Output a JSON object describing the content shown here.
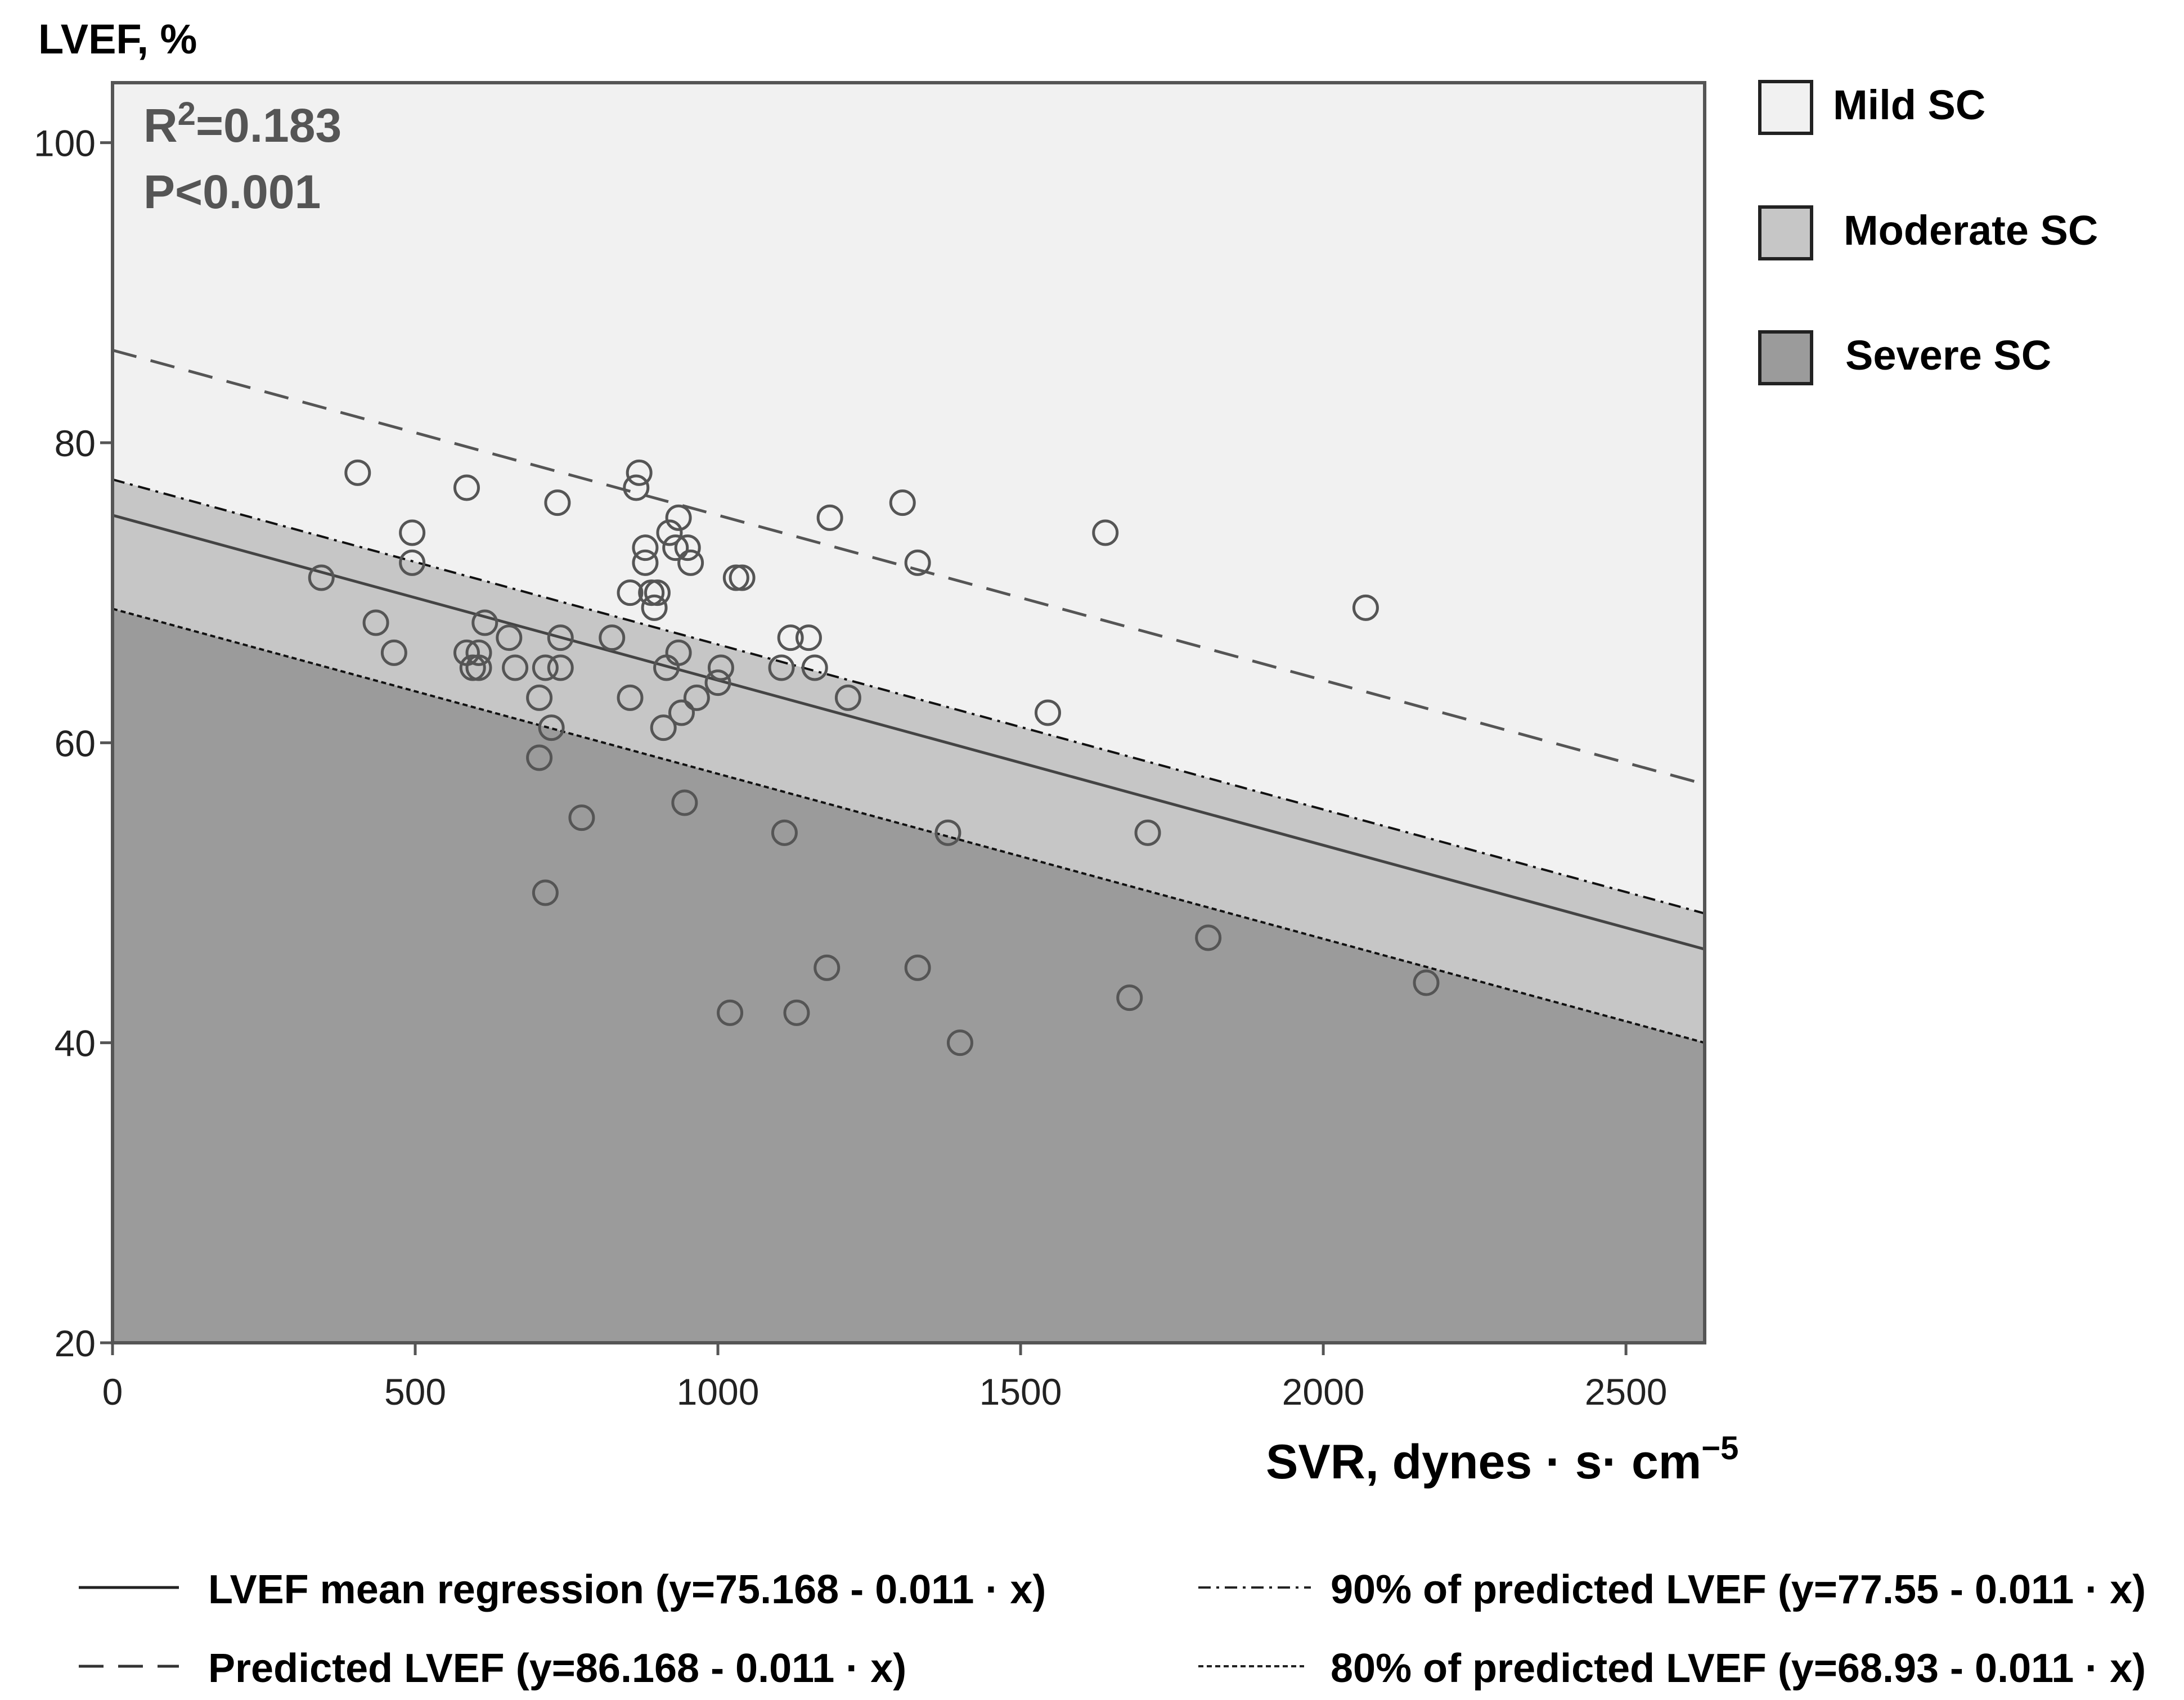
{
  "chart_data": {
    "type": "scatter",
    "y_axis_title": "LVEF, %",
    "x_axis_title": "SVR, dynes · s· cm",
    "x_axis_title_sup": "−5",
    "xlim": [
      0,
      2630
    ],
    "ylim": [
      20,
      104
    ],
    "x_ticks": [
      0,
      500,
      1000,
      1500,
      2000,
      2500
    ],
    "y_ticks": [
      20,
      40,
      60,
      80,
      100
    ],
    "stats": {
      "r2_prefix": "R",
      "r2_sup": "2",
      "r2_value": "=0.183",
      "p_value": "P<0.001"
    },
    "bands": [
      {
        "name": "Mild SC",
        "color": "#f1f1f1"
      },
      {
        "name": "Moderate SC",
        "color": "#c6c6c6"
      },
      {
        "name": "Severe SC",
        "color": "#9b9b9b"
      }
    ],
    "lines": [
      {
        "key": "mean",
        "label": "LVEF mean regression (y=75.168 - 0.011 · x)",
        "intercept": 75.168,
        "slope": -0.011,
        "style": "solid"
      },
      {
        "key": "predicted",
        "label": "Predicted LVEF (y=86.168 - 0.011 · x)",
        "intercept": 86.168,
        "slope": -0.011,
        "style": "dashed"
      },
      {
        "key": "p90",
        "label": "90% of predicted LVEF (y=77.55 - 0.011 · x)",
        "intercept": 77.55,
        "slope": -0.011,
        "style": "dashdot"
      },
      {
        "key": "p80",
        "label": "80% of predicted LVEF (y=68.93 - 0.011 · x)",
        "intercept": 68.93,
        "slope": -0.011,
        "style": "dotted"
      }
    ],
    "points": [
      [
        405,
        78
      ],
      [
        345,
        71
      ],
      [
        435,
        68
      ],
      [
        465,
        66
      ],
      [
        495,
        74
      ],
      [
        495,
        72
      ],
      [
        585,
        77
      ],
      [
        585,
        66
      ],
      [
        595,
        65
      ],
      [
        605,
        66
      ],
      [
        605,
        65
      ],
      [
        615,
        68
      ],
      [
        655,
        67
      ],
      [
        665,
        65
      ],
      [
        705,
        63
      ],
      [
        705,
        59
      ],
      [
        715,
        50
      ],
      [
        715,
        65
      ],
      [
        725,
        61
      ],
      [
        735,
        76
      ],
      [
        740,
        67
      ],
      [
        740,
        65
      ],
      [
        775,
        55
      ],
      [
        825,
        67
      ],
      [
        855,
        63
      ],
      [
        855,
        70
      ],
      [
        865,
        77
      ],
      [
        870,
        78
      ],
      [
        880,
        73
      ],
      [
        880,
        72
      ],
      [
        890,
        70
      ],
      [
        895,
        69
      ],
      [
        900,
        70
      ],
      [
        910,
        61
      ],
      [
        915,
        65
      ],
      [
        920,
        74
      ],
      [
        930,
        73
      ],
      [
        935,
        66
      ],
      [
        935,
        75
      ],
      [
        940,
        62
      ],
      [
        945,
        56
      ],
      [
        950,
        73
      ],
      [
        955,
        72
      ],
      [
        965,
        63
      ],
      [
        1000,
        64
      ],
      [
        1005,
        65
      ],
      [
        1020,
        42
      ],
      [
        1030,
        71
      ],
      [
        1040,
        71
      ],
      [
        1105,
        65
      ],
      [
        1110,
        54
      ],
      [
        1120,
        67
      ],
      [
        1130,
        42
      ],
      [
        1150,
        67
      ],
      [
        1160,
        65
      ],
      [
        1180,
        45
      ],
      [
        1185,
        75
      ],
      [
        1215,
        63
      ],
      [
        1305,
        76
      ],
      [
        1330,
        72
      ],
      [
        1330,
        45
      ],
      [
        1380,
        54
      ],
      [
        1400,
        40
      ],
      [
        1545,
        62
      ],
      [
        1640,
        74
      ],
      [
        1680,
        43
      ],
      [
        1710,
        54
      ],
      [
        1810,
        47
      ],
      [
        2070,
        69
      ],
      [
        2170,
        44
      ]
    ]
  }
}
